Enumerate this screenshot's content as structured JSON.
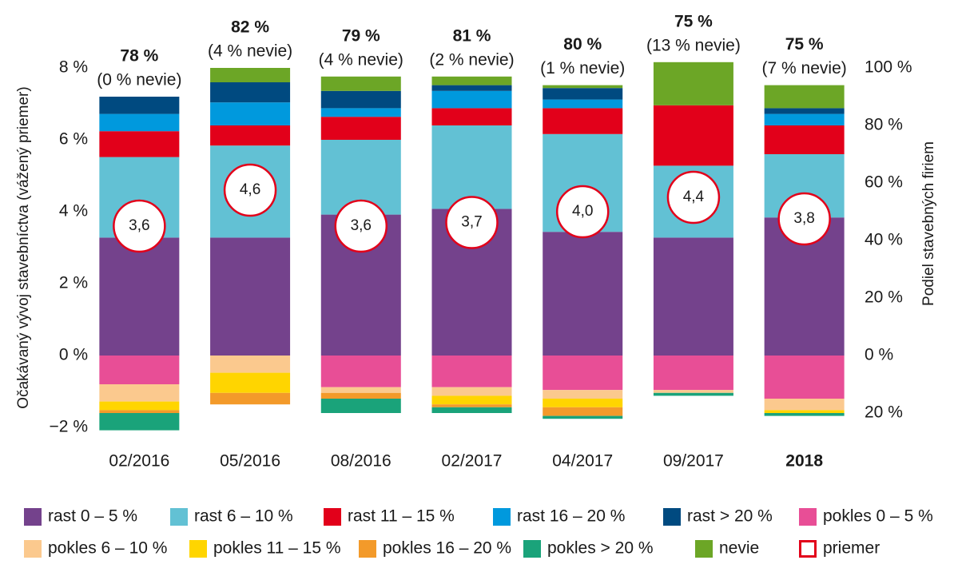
{
  "chart_data": {
    "type": "stacked-bar",
    "ylabel": "Očakávaný vývoj stavebníctva (vážený priemer)",
    "y2label": "Podiel stavebných firiem",
    "categories": [
      "02/2016",
      "05/2016",
      "08/2016",
      "02/2017",
      "04/2017",
      "09/2017",
      "2018"
    ],
    "highlight_category": 6,
    "summary": [
      "78 %",
      "82 %",
      "79 %",
      "81 %",
      "80 %",
      "75 %",
      "75 %"
    ],
    "summary_sub": [
      "(0 % nevie)",
      "(4 % nevie)",
      "(4 % nevie)",
      "(2 % nevie)",
      "(1 % nevie)",
      "(13 % nevie)",
      "(7 % nevie)"
    ],
    "ylim": [
      -2,
      8
    ],
    "yticks": [
      {
        "value": -2,
        "label": "−2 %"
      },
      {
        "value": 0,
        "label": "0 %"
      },
      {
        "value": 2,
        "label": "2 %"
      },
      {
        "value": 4,
        "label": "4 %"
      },
      {
        "value": 6,
        "label": "6 %"
      },
      {
        "value": 8,
        "label": "8 %"
      }
    ],
    "y2lim": [
      -25,
      100
    ],
    "y2ticks": [
      {
        "value": -20,
        "label": "20 %"
      },
      {
        "value": 0,
        "label": "0 %"
      },
      {
        "value": 20,
        "label": "20 %"
      },
      {
        "value": 40,
        "label": "40 %"
      },
      {
        "value": 60,
        "label": "60 %"
      },
      {
        "value": 80,
        "label": "80 %"
      },
      {
        "value": 100,
        "label": "100 %"
      }
    ],
    "series": [
      {
        "name": "rast 0 – 5 %",
        "color": "#74428c",
        "axis": "y2",
        "values": [
          41,
          41,
          49,
          51,
          43,
          41,
          48
        ]
      },
      {
        "name": "rast 6 – 10 %",
        "color": "#62c1d4",
        "axis": "y2",
        "values": [
          28,
          32,
          26,
          29,
          34,
          25,
          22
        ]
      },
      {
        "name": "rast 11 – 15 %",
        "color": "#e2001a",
        "axis": "y2",
        "values": [
          9,
          7,
          8,
          6,
          9,
          21,
          10
        ]
      },
      {
        "name": "rast 16 – 20 %",
        "color": "#0099dd",
        "axis": "y2",
        "values": [
          6,
          8,
          3,
          6,
          3,
          0,
          4
        ]
      },
      {
        "name": "rast > 20 %",
        "color": "#004a80",
        "axis": "y2",
        "values": [
          6,
          7,
          6,
          2,
          4,
          0,
          2
        ]
      },
      {
        "name": "pokles 0 – 5 %",
        "color": "#e84e96",
        "axis": "y2",
        "values": [
          -10,
          0,
          -11,
          -11,
          -12,
          -12,
          -15
        ]
      },
      {
        "name": "pokles 6 – 10 %",
        "color": "#fbc98e",
        "axis": "y2",
        "values": [
          -6,
          -6,
          -2,
          -3,
          -3,
          -1,
          -4
        ]
      },
      {
        "name": "pokles 11 – 15 %",
        "color": "#ffd500",
        "axis": "y2",
        "values": [
          -3,
          -7,
          0,
          -3,
          -3,
          0,
          -1
        ]
      },
      {
        "name": "pokles 16 – 20 %",
        "color": "#f39a2a",
        "axis": "y2",
        "values": [
          -1,
          -4,
          -2,
          -1,
          -3,
          0,
          0
        ]
      },
      {
        "name": "pokles > 20 %",
        "color": "#1aa37a",
        "axis": "y2",
        "values": [
          -6,
          0,
          -5,
          -2,
          -1,
          -1,
          -1
        ]
      },
      {
        "name": "nevie",
        "color": "#6ca626",
        "axis": "y2",
        "values": [
          0,
          5,
          5,
          3,
          1,
          15,
          8
        ]
      }
    ],
    "average": {
      "name": "priemer",
      "color": "#e2001a",
      "values": [
        3.6,
        4.6,
        3.6,
        3.7,
        4.0,
        4.4,
        3.8
      ],
      "value_labels": [
        "3,6",
        "4,6",
        "3,6",
        "3,7",
        "4,0",
        "4,4",
        "3,8"
      ]
    }
  }
}
